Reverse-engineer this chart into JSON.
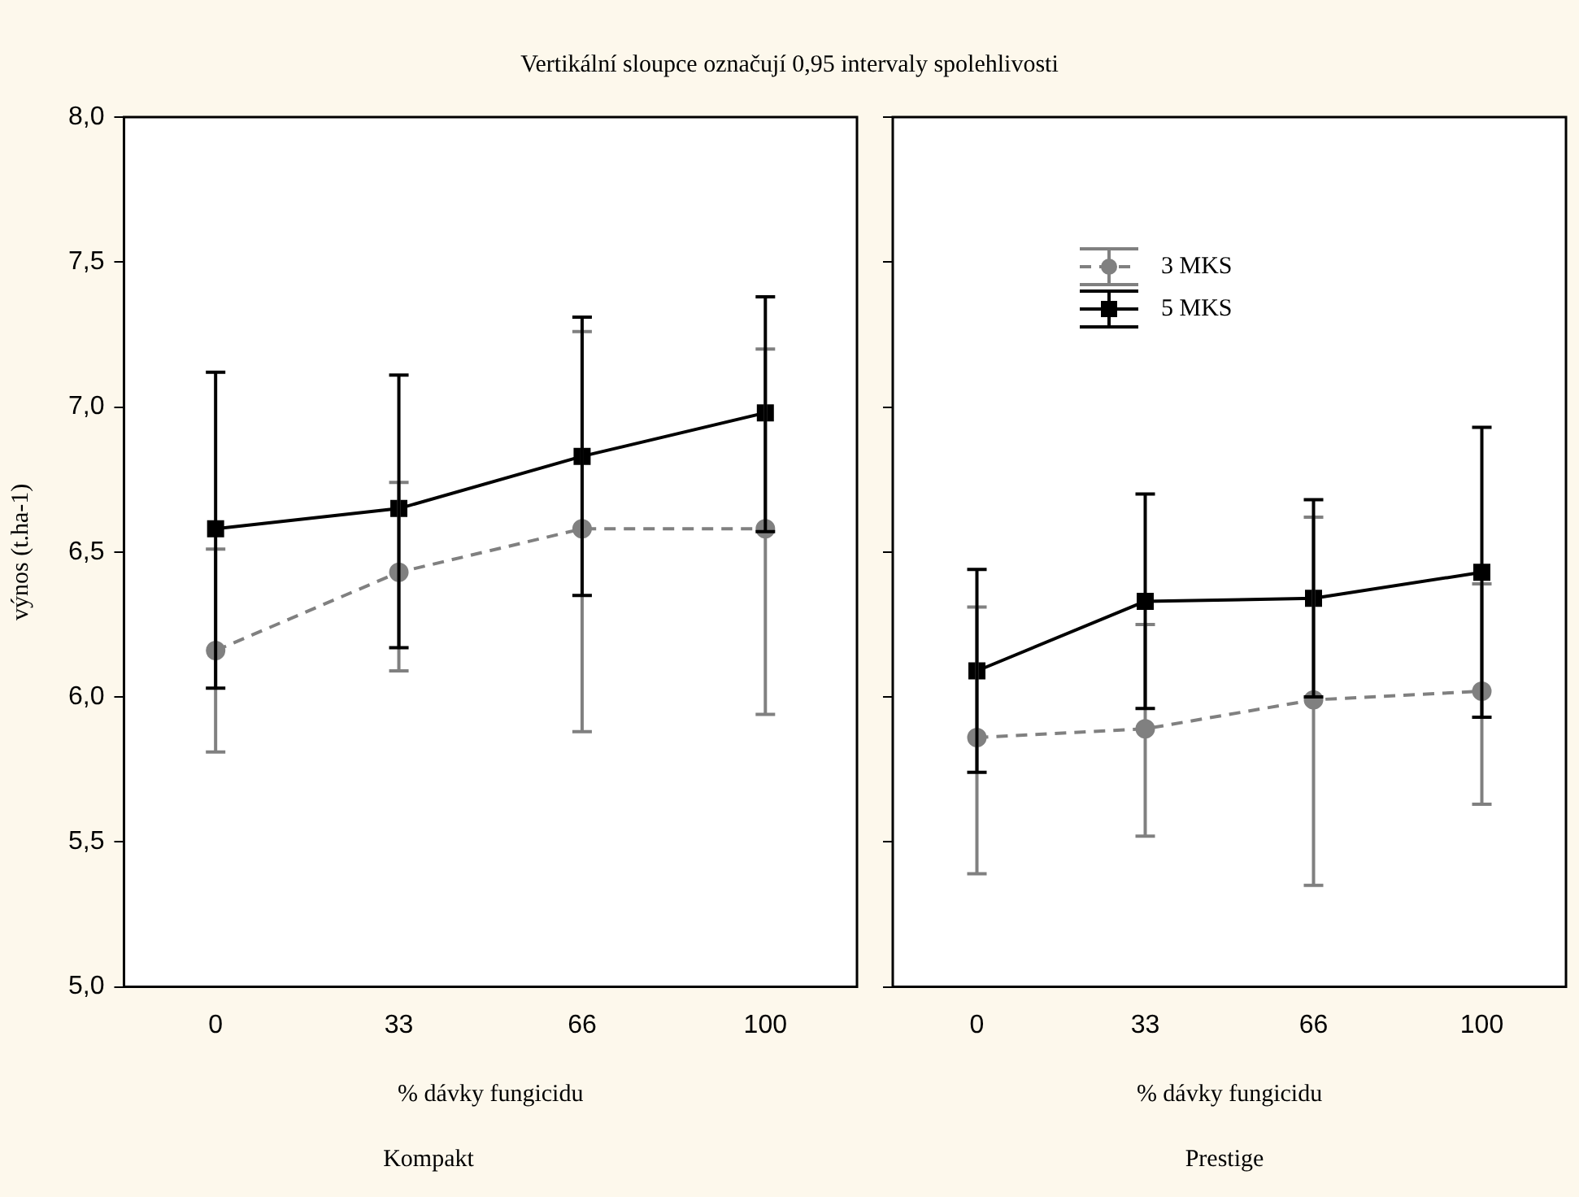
{
  "chart_data": [
    {
      "type": "line",
      "title": "Vertikální sloupce označují 0,95 intervaly spolehlivosti",
      "subtitle": "Kompakt",
      "xlabel": "% dávky fungicidu",
      "ylabel": "výnos (t.ha-1)",
      "categories": [
        "0",
        "33",
        "66",
        "100"
      ],
      "ylim": [
        5,
        8
      ],
      "yticks": [
        {
          "value": 5,
          "label": "5,0"
        },
        {
          "value": 5.5,
          "label": "5,5"
        },
        {
          "value": 6,
          "label": "6,0"
        },
        {
          "value": 6.5,
          "label": "6,5"
        },
        {
          "value": 7,
          "label": "7,0"
        },
        {
          "value": 7.5,
          "label": "7,5"
        },
        {
          "value": 8,
          "label": "8,0"
        }
      ],
      "grid": false,
      "legend": false,
      "series": [
        {
          "color": "#808080",
          "marker": "circle",
          "line_style": "dashed",
          "values": [
            6.16,
            6.43,
            6.58,
            6.58
          ],
          "errors": [
            [
              5.81,
              6.51
            ],
            [
              6.09,
              6.74
            ],
            [
              5.88,
              7.26
            ],
            [
              5.94,
              7.2
            ]
          ]
        },
        {
          "color": "#000000",
          "marker": "square",
          "line_style": "solid",
          "values": [
            6.58,
            6.65,
            6.83,
            6.98
          ],
          "errors": [
            [
              6.03,
              7.12
            ],
            [
              6.17,
              7.11
            ],
            [
              6.35,
              7.31
            ],
            [
              6.57,
              7.38
            ]
          ]
        }
      ]
    },
    {
      "type": "line",
      "subtitle": "Prestige",
      "xlabel": "% dávky fungicidu",
      "categories": [
        "0",
        "33",
        "66",
        "100"
      ],
      "ylim": [
        5,
        8
      ],
      "tick_labels": "x",
      "grid": false,
      "legend": "top left",
      "series": [
        {
          "name": "3 MKS",
          "color": "#808080",
          "marker": "circle",
          "line_style": "dashed",
          "values": [
            5.86,
            5.89,
            5.99,
            6.02
          ],
          "errors": [
            [
              5.39,
              6.31
            ],
            [
              5.52,
              6.25
            ],
            [
              5.35,
              6.62
            ],
            [
              5.63,
              6.39
            ]
          ]
        },
        {
          "name": "5 MKS",
          "color": "#000000",
          "marker": "square",
          "line_style": "solid",
          "values": [
            6.09,
            6.33,
            6.34,
            6.43
          ],
          "errors": [
            [
              5.74,
              6.44
            ],
            [
              5.96,
              6.7
            ],
            [
              6.0,
              6.68
            ],
            [
              5.93,
              6.93
            ]
          ]
        }
      ]
    }
  ]
}
